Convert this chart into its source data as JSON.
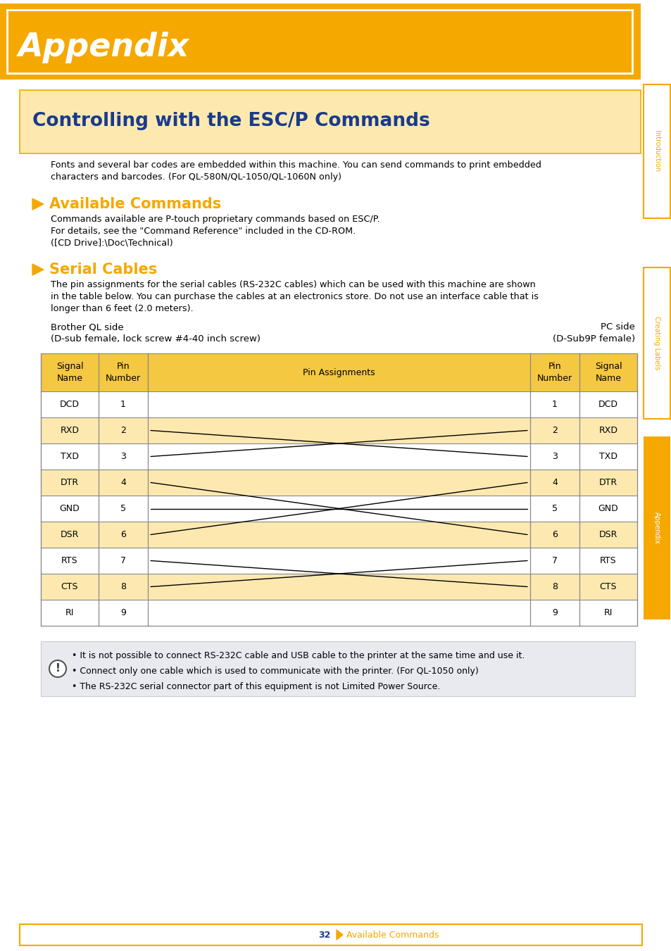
{
  "page_bg": "#ffffff",
  "orange_main": "#f5a800",
  "orange_light": "#fde9b0",
  "table_header_orange": "#f5c842",
  "table_row_orange": "#fde9b0",
  "blue_title": "#1a3a8c",
  "note_bg": "#e8eaf0",
  "appendix_header_text": "Appendix",
  "esc_title": "Controlling with the ESC/P Commands",
  "esc_body_1": "Fonts and several bar codes are embedded within this machine. You can send commands to print embedded",
  "esc_body_2": "characters and barcodes. (For QL-580N/QL-1050/QL-1060N only)",
  "avail_section": "Available Commands",
  "avail_body_1": "Commands available are P-touch proprietary commands based on ESC/P.",
  "avail_body_2": "For details, see the \"Command Reference\" included in the CD-ROM.",
  "avail_body_3": "([CD Drive]:\\Doc\\Technical)",
  "serial_section": "Serial Cables",
  "serial_body_1": "The pin assignments for the serial cables (RS-232C cables) which can be used with this machine are shown",
  "serial_body_2": "in the table below. You can purchase the cables at an electronics store. Do not use an interface cable that is",
  "serial_body_3": "longer than 6 feet (2.0 meters).",
  "brother_side": "Brother QL side",
  "brother_sub": "(D-sub female, lock screw #4-40 inch screw)",
  "pc_side": "PC side",
  "pc_sub": "(D-Sub9P female)",
  "table_rows": [
    [
      "DCD",
      "1",
      "1",
      "DCD"
    ],
    [
      "RXD",
      "2",
      "2",
      "RXD"
    ],
    [
      "TXD",
      "3",
      "3",
      "TXD"
    ],
    [
      "DTR",
      "4",
      "4",
      "DTR"
    ],
    [
      "GND",
      "5",
      "5",
      "GND"
    ],
    [
      "DSR",
      "6",
      "6",
      "DSR"
    ],
    [
      "RTS",
      "7",
      "7",
      "RTS"
    ],
    [
      "CTS",
      "8",
      "8",
      "CTS"
    ],
    [
      "RI",
      "9",
      "9",
      "RI"
    ]
  ],
  "note_text": [
    "• It is not possible to connect RS-232C cable and USB cable to the printer at the same time and use it.",
    "• Connect only one cable which is used to communicate with the printer. (For QL-1050 only)",
    "• The RS-232C serial connector part of this equipment is not Limited Power Source."
  ],
  "footer_page": "32",
  "footer_text": "Available Commands",
  "sidebar_intro": "Introduction",
  "sidebar_creating": "Creating Labels",
  "sidebar_appendix": "Appendix"
}
